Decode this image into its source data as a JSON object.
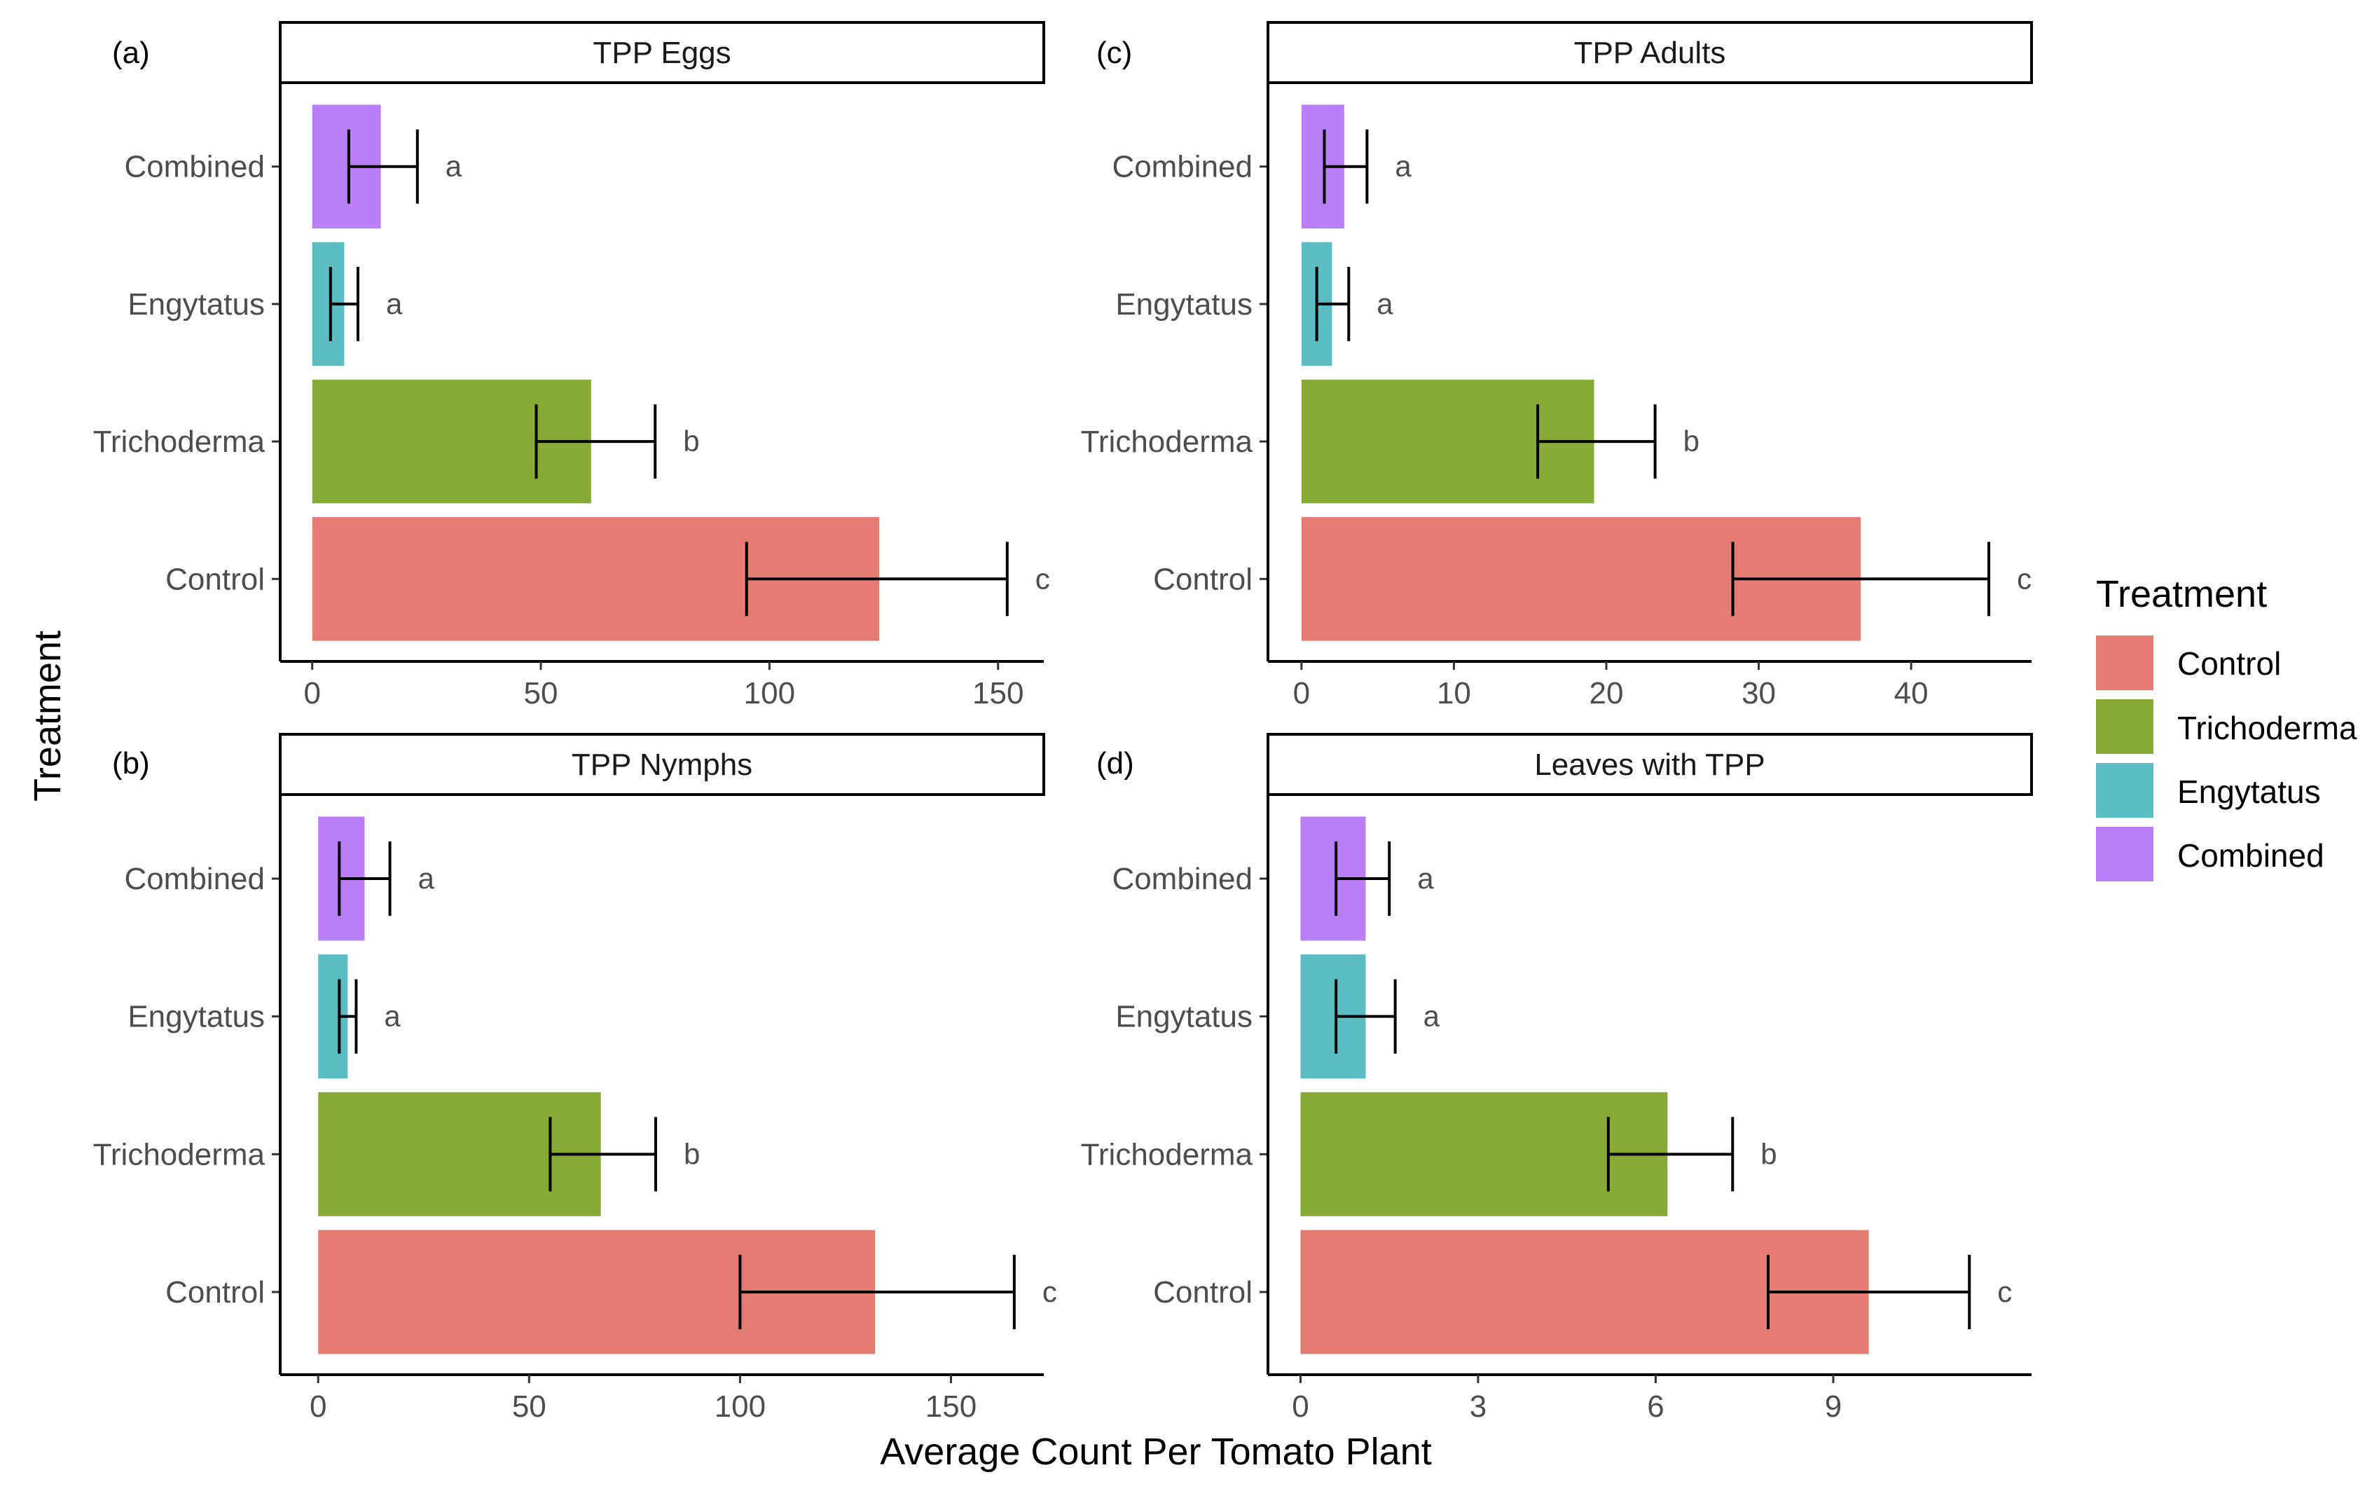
{
  "figure": {
    "xlabel": "Average Count Per Tomato Plant",
    "ylabel": "Treatment"
  },
  "legend": {
    "title": "Treatment",
    "placement": "right",
    "items": [
      {
        "label": "Control",
        "color": "#E57C72"
      },
      {
        "label": "Trichoderma",
        "color": "#87A935"
      },
      {
        "label": "Engytatus",
        "color": "#5BBCC2"
      },
      {
        "label": "Combined",
        "color": "#BA7EF6"
      }
    ]
  },
  "chart_data": [
    {
      "type": "bar",
      "orientation": "horizontal",
      "tag": "(a)",
      "title": "TPP Eggs",
      "categories": [
        "Control",
        "Trichoderma",
        "Engytatus",
        "Combined"
      ],
      "values": [
        124,
        61,
        7,
        15
      ],
      "error_low": [
        95,
        49,
        4,
        8
      ],
      "error_high": [
        152,
        75,
        10,
        23
      ],
      "letters": [
        "c",
        "b",
        "a",
        "a"
      ],
      "xlim": [
        -7,
        160
      ],
      "xticks": [
        0,
        50,
        100,
        150
      ]
    },
    {
      "type": "bar",
      "orientation": "horizontal",
      "tag": "(c)",
      "title": "TPP Adults",
      "categories": [
        "Control",
        "Trichoderma",
        "Engytatus",
        "Combined"
      ],
      "values": [
        36.7,
        19.2,
        2,
        2.8
      ],
      "error_low": [
        28.3,
        15.5,
        1,
        1.5
      ],
      "error_high": [
        45.1,
        23.2,
        3.1,
        4.3
      ],
      "letters": [
        "c",
        "b",
        "a",
        "a"
      ],
      "xlim": [
        -2.2,
        47.9
      ],
      "xticks": [
        0,
        10,
        20,
        30,
        40
      ]
    },
    {
      "type": "bar",
      "orientation": "horizontal",
      "tag": "(b)",
      "title": "TPP Nymphs",
      "categories": [
        "Control",
        "Trichoderma",
        "Engytatus",
        "Combined"
      ],
      "values": [
        132,
        67,
        7,
        11
      ],
      "error_low": [
        100,
        55,
        5,
        5
      ],
      "error_high": [
        165,
        80,
        9,
        17
      ],
      "letters": [
        "c",
        "b",
        "a",
        "a"
      ],
      "xlim": [
        -9,
        172
      ],
      "xticks": [
        0,
        50,
        100,
        150
      ]
    },
    {
      "type": "bar",
      "orientation": "horizontal",
      "tag": "(d)",
      "title": "Leaves with TPP",
      "categories": [
        "Control",
        "Trichoderma",
        "Engytatus",
        "Combined"
      ],
      "values": [
        9.6,
        6.2,
        1.1,
        1.1
      ],
      "error_low": [
        7.9,
        5.2,
        0.6,
        0.6
      ],
      "error_high": [
        11.3,
        7.3,
        1.6,
        1.5
      ],
      "letters": [
        "c",
        "b",
        "a",
        "a"
      ],
      "xlim": [
        -0.55,
        12.35
      ],
      "xticks": [
        0,
        3,
        6,
        9
      ]
    }
  ]
}
